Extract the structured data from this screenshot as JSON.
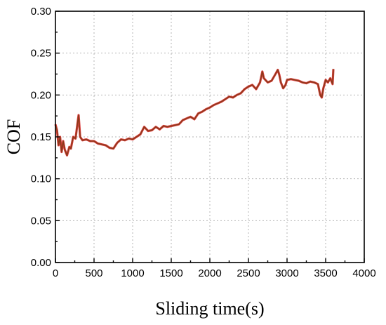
{
  "chart_data": {
    "type": "line",
    "xlabel": "Sliding time(s)",
    "ylabel": "COF",
    "xlim": [
      0,
      4000
    ],
    "ylim": [
      0.0,
      0.3
    ],
    "x_ticks": [
      "0",
      "500",
      "1000",
      "1500",
      "2000",
      "2500",
      "3000",
      "3500",
      "4000"
    ],
    "y_ticks": [
      "0.00",
      "0.05",
      "0.10",
      "0.15",
      "0.20",
      "0.25",
      "0.30"
    ],
    "grid": true,
    "series": [
      {
        "color": "#8b3a1a",
        "highlight_color": "#d81e1e",
        "x": [
          0,
          20,
          40,
          60,
          80,
          100,
          120,
          150,
          180,
          200,
          230,
          260,
          280,
          300,
          320,
          350,
          400,
          450,
          500,
          550,
          600,
          650,
          700,
          750,
          800,
          850,
          900,
          950,
          1000,
          1050,
          1100,
          1150,
          1200,
          1250,
          1300,
          1350,
          1400,
          1450,
          1500,
          1550,
          1600,
          1650,
          1700,
          1750,
          1800,
          1850,
          1900,
          1950,
          2000,
          2050,
          2100,
          2150,
          2200,
          2250,
          2300,
          2350,
          2400,
          2450,
          2500,
          2550,
          2600,
          2650,
          2680,
          2700,
          2720,
          2750,
          2800,
          2850,
          2880,
          2900,
          2920,
          2950,
          2980,
          3000,
          3050,
          3100,
          3150,
          3200,
          3250,
          3300,
          3350,
          3400,
          3430,
          3450,
          3470,
          3500,
          3530,
          3560,
          3590,
          3600
        ],
        "y": [
          0.165,
          0.158,
          0.14,
          0.15,
          0.132,
          0.145,
          0.135,
          0.128,
          0.138,
          0.136,
          0.15,
          0.148,
          0.162,
          0.176,
          0.15,
          0.146,
          0.147,
          0.145,
          0.145,
          0.142,
          0.141,
          0.14,
          0.137,
          0.136,
          0.143,
          0.147,
          0.146,
          0.148,
          0.147,
          0.15,
          0.153,
          0.162,
          0.157,
          0.158,
          0.162,
          0.159,
          0.163,
          0.162,
          0.163,
          0.164,
          0.165,
          0.17,
          0.172,
          0.174,
          0.171,
          0.178,
          0.18,
          0.183,
          0.185,
          0.188,
          0.19,
          0.192,
          0.195,
          0.198,
          0.197,
          0.2,
          0.202,
          0.207,
          0.21,
          0.212,
          0.207,
          0.215,
          0.228,
          0.22,
          0.218,
          0.215,
          0.217,
          0.225,
          0.23,
          0.224,
          0.215,
          0.208,
          0.212,
          0.218,
          0.219,
          0.218,
          0.217,
          0.215,
          0.214,
          0.216,
          0.215,
          0.213,
          0.2,
          0.197,
          0.208,
          0.218,
          0.215,
          0.22,
          0.213,
          0.231
        ]
      }
    ]
  }
}
